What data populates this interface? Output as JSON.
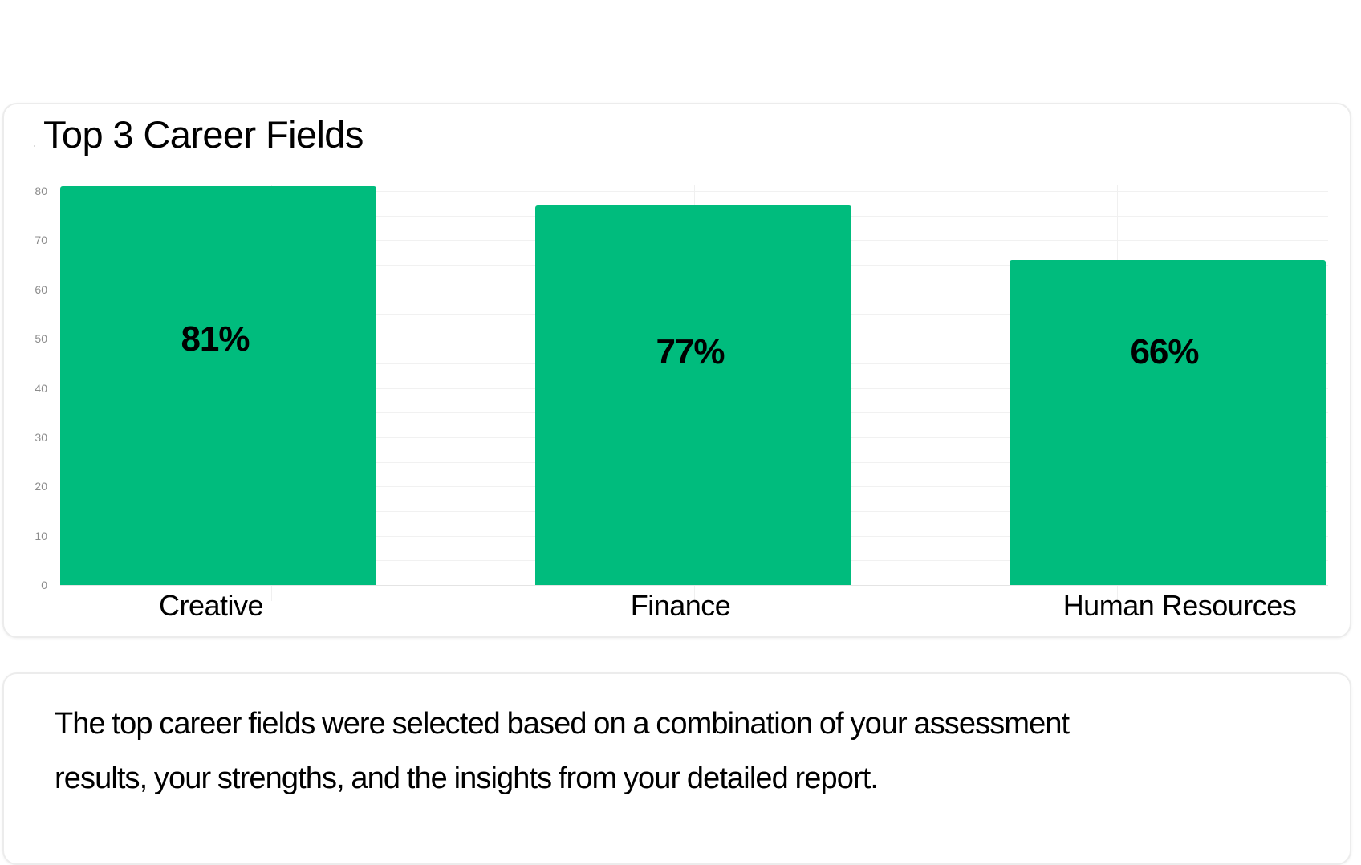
{
  "chart_card": {
    "title": "Top 3 Career Fields"
  },
  "chart_data": {
    "type": "bar",
    "title": "Top 3 Career Fields",
    "categories": [
      "Creative",
      "Finance",
      "Human Resources"
    ],
    "values": [
      81,
      77,
      66
    ],
    "value_labels": [
      "81%",
      "77%",
      "66%"
    ],
    "xlabel": "",
    "ylabel": "",
    "ylim": [
      0,
      80
    ],
    "yticks": [
      0,
      10,
      20,
      30,
      40,
      50,
      60,
      70,
      80
    ],
    "grid": true,
    "legend": null,
    "bar_color": "#00BC7D"
  },
  "info_card": {
    "text_line_1": "The top career fields were selected based on a combination of your assessment",
    "text_line_2": "results, your strengths, and the insights from your detailed report."
  },
  "colors": {
    "bar": "#00BC7D",
    "grid": "#f1f1f1",
    "card_border": "#ececec",
    "tick_text": "#8c8c8c"
  }
}
